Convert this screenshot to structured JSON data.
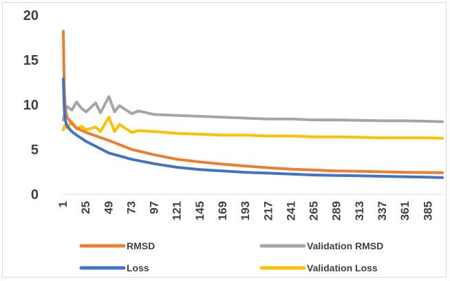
{
  "chart_data": {
    "type": "line",
    "x_ticks": [
      "1",
      "25",
      "49",
      "73",
      "97",
      "121",
      "145",
      "169",
      "193",
      "217",
      "241",
      "265",
      "289",
      "313",
      "337",
      "361",
      "385"
    ],
    "x_range": [
      1,
      400
    ],
    "ylim": [
      0,
      20
    ],
    "y_ticks": [
      "0",
      "5",
      "10",
      "15",
      "20"
    ],
    "grid": false,
    "legend_position": "bottom",
    "series": [
      {
        "name": "RMSD",
        "color": "#ED7D31",
        "x": [
          1,
          2,
          3,
          5,
          10,
          15,
          25,
          49,
          73,
          97,
          121,
          145,
          169,
          193,
          217,
          241,
          265,
          289,
          313,
          337,
          361,
          385,
          400
        ],
        "y": [
          18.2,
          12.0,
          9.5,
          8.6,
          7.9,
          7.4,
          6.9,
          6.0,
          5.0,
          4.4,
          3.9,
          3.6,
          3.35,
          3.15,
          2.95,
          2.8,
          2.7,
          2.6,
          2.55,
          2.5,
          2.45,
          2.42,
          2.4
        ]
      },
      {
        "name": "Validation RMSD",
        "color": "#A5A5A5",
        "x": [
          1,
          3,
          5,
          10,
          15,
          20,
          25,
          35,
          40,
          49,
          55,
          60,
          73,
          80,
          97,
          121,
          145,
          169,
          193,
          217,
          241,
          265,
          289,
          313,
          337,
          361,
          385,
          400
        ],
        "y": [
          8.3,
          9.3,
          9.8,
          9.4,
          10.3,
          9.6,
          9.2,
          10.2,
          9.1,
          10.9,
          9.2,
          9.9,
          9.0,
          9.3,
          8.9,
          8.8,
          8.7,
          8.6,
          8.5,
          8.4,
          8.4,
          8.3,
          8.3,
          8.25,
          8.2,
          8.2,
          8.15,
          8.1
        ]
      },
      {
        "name": "Loss",
        "color": "#4472C4",
        "x": [
          1,
          2,
          3,
          5,
          10,
          15,
          25,
          49,
          73,
          97,
          121,
          145,
          169,
          193,
          217,
          241,
          265,
          289,
          313,
          337,
          361,
          385,
          400
        ],
        "y": [
          12.9,
          9.5,
          8.3,
          7.6,
          7.0,
          6.6,
          5.9,
          4.6,
          3.9,
          3.4,
          3.0,
          2.75,
          2.6,
          2.45,
          2.35,
          2.25,
          2.15,
          2.1,
          2.05,
          2.0,
          1.95,
          1.9,
          1.85
        ]
      },
      {
        "name": "Validation Loss",
        "color": "#FFC000",
        "x": [
          1,
          3,
          5,
          10,
          15,
          20,
          25,
          35,
          40,
          49,
          55,
          60,
          73,
          80,
          97,
          121,
          145,
          169,
          193,
          217,
          241,
          265,
          289,
          313,
          337,
          361,
          385,
          400
        ],
        "y": [
          7.2,
          7.8,
          7.4,
          8.1,
          7.3,
          7.6,
          7.2,
          7.5,
          7.0,
          8.6,
          7.0,
          7.8,
          6.9,
          7.1,
          7.0,
          6.8,
          6.7,
          6.6,
          6.6,
          6.5,
          6.5,
          6.4,
          6.4,
          6.35,
          6.3,
          6.3,
          6.3,
          6.25
        ]
      }
    ]
  }
}
